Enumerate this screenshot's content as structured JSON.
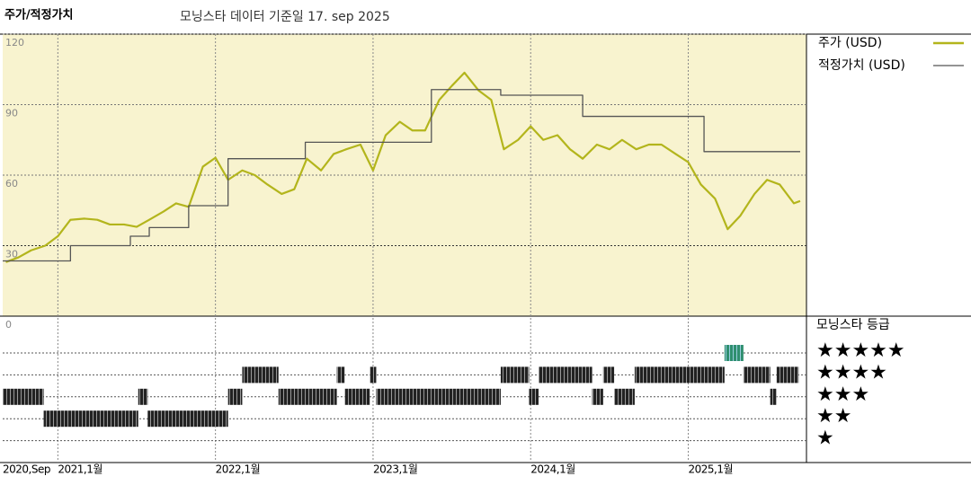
{
  "header": {
    "title": "주가/적정가치",
    "date_note": "모닝스타 데이터 기준일 17. sep 2025"
  },
  "chart_data": {
    "type": "line",
    "xlim": [
      2020.65,
      2025.75
    ],
    "xticks": [
      {
        "value": 2020.67,
        "label": "2020,Sep"
      },
      {
        "value": 2021,
        "label": "2021,1월"
      },
      {
        "value": 2022,
        "label": "2022,1월"
      },
      {
        "value": 2023,
        "label": "2023,1월"
      },
      {
        "value": 2024,
        "label": "2024,1월"
      },
      {
        "value": 2025,
        "label": "2025,1월"
      }
    ],
    "ylim": [
      0,
      120
    ],
    "yticks": [
      30,
      60,
      90,
      120
    ],
    "grid": true,
    "series": [
      {
        "name": "주가 (USD)",
        "color": "#b3b51c",
        "step": false,
        "x": [
          2020.67,
          2020.75,
          2020.83,
          2020.92,
          2021,
          2021.08,
          2021.17,
          2021.25,
          2021.33,
          2021.42,
          2021.5,
          2021.58,
          2021.67,
          2021.75,
          2021.83,
          2021.92,
          2022,
          2022.08,
          2022.17,
          2022.25,
          2022.33,
          2022.42,
          2022.5,
          2022.58,
          2022.67,
          2022.75,
          2022.83,
          2022.92,
          2023,
          2023.08,
          2023.17,
          2023.25,
          2023.33,
          2023.42,
          2023.5,
          2023.58,
          2023.67,
          2023.75,
          2023.83,
          2023.92,
          2024,
          2024.08,
          2024.17,
          2024.25,
          2024.33,
          2024.42,
          2024.5,
          2024.58,
          2024.67,
          2024.75,
          2024.83,
          2024.92,
          2025,
          2025.08,
          2025.17,
          2025.25,
          2025.33,
          2025.42,
          2025.5,
          2025.58,
          2025.67,
          2025.71
        ],
        "values": [
          23,
          25,
          28,
          30,
          34,
          41,
          41.5,
          41,
          39,
          39,
          38,
          41,
          44.5,
          48,
          46.5,
          63.6,
          67.4,
          58,
          62,
          60,
          56,
          52,
          54,
          67,
          62,
          69,
          71,
          73,
          62,
          77,
          82.7,
          79,
          79,
          92,
          98,
          103.6,
          96,
          92,
          71,
          75,
          80.8,
          75,
          77,
          71,
          67,
          73,
          71,
          75,
          71,
          73,
          73,
          69,
          65.5,
          56,
          50,
          37,
          42.7,
          52,
          58,
          56,
          48,
          49
        ]
      },
      {
        "name": "적정가치 (USD)",
        "color": "#555555",
        "step": true,
        "x": [
          2020.65,
          2021.08,
          2021.46,
          2021.58,
          2021.83,
          2022.08,
          2022.57,
          2023.37,
          2023.81,
          2024.33,
          2025.1,
          2025.71
        ],
        "values": [
          23.5,
          30,
          34,
          37.7,
          47,
          67,
          74,
          96.4,
          94,
          85,
          70,
          70
        ]
      }
    ],
    "rating": {
      "title": "모닝스타 등급",
      "panel_label": "0",
      "levels": [
        {
          "stars": 5,
          "label": "★★★★★"
        },
        {
          "stars": 4,
          "label": "★★★★"
        },
        {
          "stars": 3,
          "label": "★★★"
        },
        {
          "stars": 2,
          "label": "★★"
        },
        {
          "stars": 1,
          "label": "★"
        }
      ],
      "starts": [
        2020.65,
        2020.91,
        2021.51,
        2021.57,
        2022.08,
        2022.17,
        2022.4,
        2022.77,
        2022.82,
        2022.98,
        2023.02,
        2023.81,
        2023.99,
        2024.05,
        2024.39,
        2024.46,
        2024.53,
        2024.66,
        2025.23,
        2025.35,
        2025.52,
        2025.56
      ],
      "ends": [
        2020.91,
        2021.51,
        2021.57,
        2022.08,
        2022.17,
        2022.4,
        2022.77,
        2022.82,
        2022.98,
        2023.02,
        2023.81,
        2023.99,
        2024.05,
        2024.39,
        2024.46,
        2024.53,
        2024.66,
        2025.23,
        2025.35,
        2025.52,
        2025.56,
        2025.7
      ],
      "stars": [
        3,
        2,
        3,
        2,
        3,
        4,
        3,
        4,
        3,
        4,
        3,
        4,
        3,
        4,
        3,
        4,
        3,
        4,
        5,
        4,
        3,
        4
      ]
    }
  }
}
